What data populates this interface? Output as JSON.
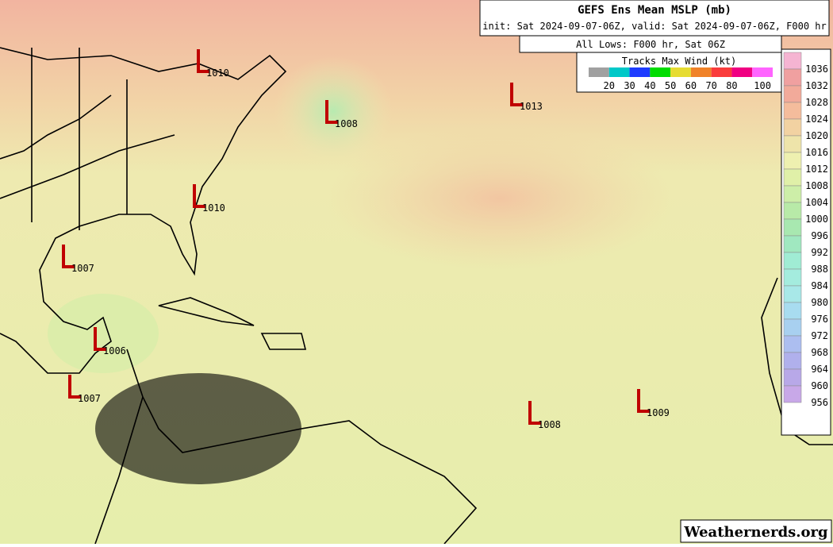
{
  "header": {
    "title": "GEFS Ens Mean MSLP (mb)",
    "subtitle": "init: Sat 2024-09-07-06Z, valid: Sat 2024-09-07-06Z, F000 hr",
    "lows_title": "All Lows: F000 hr, Sat 06Z"
  },
  "wind_legend": {
    "title": "Tracks Max Wind (kt)",
    "labels": [
      "20",
      "30",
      "40",
      "50",
      "60",
      "70",
      "80",
      "100"
    ],
    "colors": [
      "#a0a0a0",
      "#00c8c8",
      "#1e3cff",
      "#00dc00",
      "#e6dc32",
      "#f08228",
      "#fa3c3c",
      "#f00082",
      "#ff64ff"
    ]
  },
  "pressure_bar": {
    "labels": [
      "1036",
      "1032",
      "1028",
      "1024",
      "1020",
      "1016",
      "1012",
      "1008",
      "1004",
      "1000",
      "996",
      "992",
      "988",
      "984",
      "980",
      "976",
      "972",
      "968",
      "964",
      "960",
      "956"
    ],
    "colors": [
      "#f5b4d2",
      "#f0a0a0",
      "#f2aa9a",
      "#f4bc9c",
      "#f2d2a2",
      "#eee4aa",
      "#eef0b0",
      "#e0f0a8",
      "#cdeea8",
      "#b8eaa8",
      "#a8e8b0",
      "#a0e8c0",
      "#a0ecd4",
      "#a4ecde",
      "#a8e8e8",
      "#a8dcf0",
      "#a8d0f0",
      "#acbef0",
      "#b0b0ec",
      "#b8a8e8",
      "#c8a8e8"
    ]
  },
  "lows": [
    {
      "label": "1010"
    },
    {
      "label": "1013"
    },
    {
      "label": "1008"
    },
    {
      "label": "1010"
    },
    {
      "label": "1007"
    },
    {
      "label": "1006"
    },
    {
      "label": "1007"
    },
    {
      "label": "1008"
    },
    {
      "label": "1009"
    }
  ],
  "watermark": "Weathernerds.org"
}
